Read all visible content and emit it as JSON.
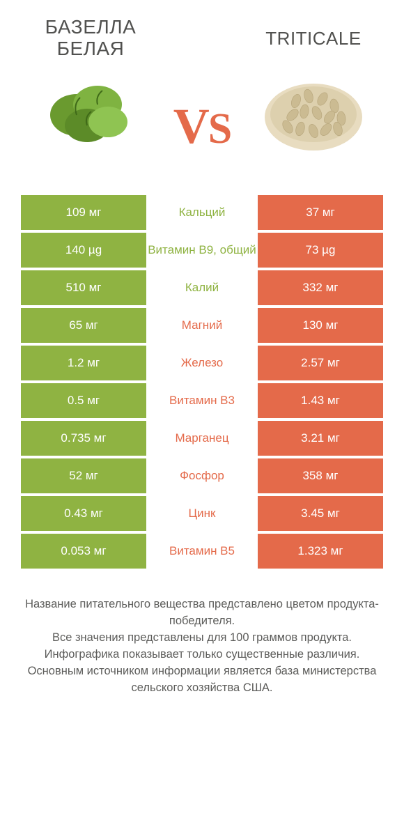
{
  "colors": {
    "left": "#8fb342",
    "right": "#e46a4a",
    "bg": "#ffffff",
    "text": "#51514f",
    "vs": "#e46a4a"
  },
  "products": {
    "left_title": "БАЗЕЛЛА БЕЛАЯ",
    "right_title": "TRITICALE"
  },
  "vs_label": "vs",
  "rows": [
    {
      "name": "Кальций",
      "left": "109 мг",
      "right": "37 мг",
      "winner": "left"
    },
    {
      "name": "Витамин B9, общий",
      "left": "140 µg",
      "right": "73 µg",
      "winner": "left"
    },
    {
      "name": "Калий",
      "left": "510 мг",
      "right": "332 мг",
      "winner": "left"
    },
    {
      "name": "Магний",
      "left": "65 мг",
      "right": "130 мг",
      "winner": "right"
    },
    {
      "name": "Железо",
      "left": "1.2 мг",
      "right": "2.57 мг",
      "winner": "right"
    },
    {
      "name": "Витамин B3",
      "left": "0.5 мг",
      "right": "1.43 мг",
      "winner": "right"
    },
    {
      "name": "Марганец",
      "left": "0.735 мг",
      "right": "3.21 мг",
      "winner": "right"
    },
    {
      "name": "Фосфор",
      "left": "52 мг",
      "right": "358 мг",
      "winner": "right"
    },
    {
      "name": "Цинк",
      "left": "0.43 мг",
      "right": "3.45 мг",
      "winner": "right"
    },
    {
      "name": "Витамин B5",
      "left": "0.053 мг",
      "right": "1.323 мг",
      "winner": "right"
    }
  ],
  "footer": {
    "line1": "Название питательного вещества представлено цветом продукта-победителя.",
    "line2": "Все значения представлены для 100 граммов продукта.",
    "line3": "Инфографика показывает только существенные различия.",
    "line4": "Основным источником информации является база министерства сельского хозяйства США."
  }
}
